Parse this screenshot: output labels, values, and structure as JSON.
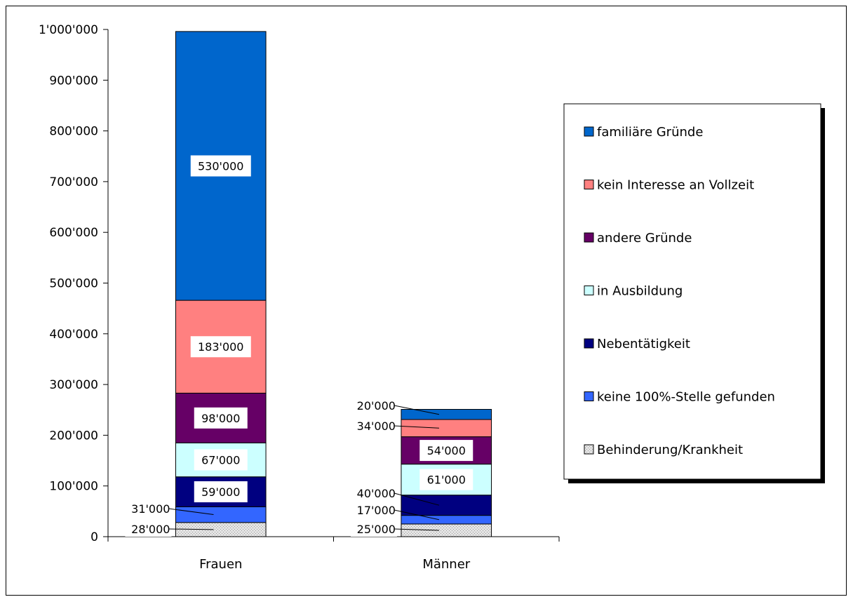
{
  "chart_data": {
    "type": "bar",
    "stacked": true,
    "categories": [
      "Frauen",
      "Männer"
    ],
    "series": [
      {
        "name": "Behinderung/Krankheit",
        "color": "#d9d9d9",
        "pattern": "dotted",
        "values": [
          28000,
          25000
        ],
        "labels": [
          "28'000",
          "25'000"
        ],
        "label_style": "leader"
      },
      {
        "name": "keine 100%-Stelle gefunden",
        "color": "#3366ff",
        "values": [
          31000,
          17000
        ],
        "labels": [
          "31'000",
          "17'000"
        ],
        "label_style": "leader"
      },
      {
        "name": "Nebentätigkeit",
        "color": "#000080",
        "values": [
          59000,
          40000
        ],
        "labels": [
          "59'000",
          "40'000"
        ],
        "label_style": [
          "box",
          "leader"
        ]
      },
      {
        "name": "in Ausbildung",
        "color": "#ccffff",
        "values": [
          67000,
          61000
        ],
        "labels": [
          "67'000",
          "61'000"
        ],
        "label_style": "box"
      },
      {
        "name": "andere Gründe",
        "color": "#660066",
        "values": [
          98000,
          54000
        ],
        "labels": [
          "98'000",
          "54'000"
        ],
        "label_style": "box"
      },
      {
        "name": "kein Interesse an Vollzeit",
        "color": "#ff8080",
        "values": [
          183000,
          34000
        ],
        "labels": [
          "183'000",
          "34'000"
        ],
        "label_style": [
          "box",
          "leader"
        ]
      },
      {
        "name": "familiäre Gründe",
        "color": "#0066cc",
        "values": [
          530000,
          20000
        ],
        "labels": [
          "530'000",
          "20'000"
        ],
        "label_style": [
          "box",
          "leader"
        ]
      }
    ],
    "ylim": [
      0,
      1000000
    ],
    "yticks": [
      "0",
      "100'000",
      "200'000",
      "300'000",
      "400'000",
      "500'000",
      "600'000",
      "700'000",
      "800'000",
      "900'000",
      "1'000'000"
    ],
    "legend": {
      "placement": "right",
      "order": [
        "familiäre Gründe",
        "kein Interesse an Vollzeit",
        "andere Gründe",
        "in Ausbildung",
        "Nebentätigkeit",
        "keine 100%-Stelle gefunden",
        "Behinderung/Krankheit"
      ]
    },
    "grid": false,
    "title": "",
    "xlabel": "",
    "ylabel": ""
  }
}
